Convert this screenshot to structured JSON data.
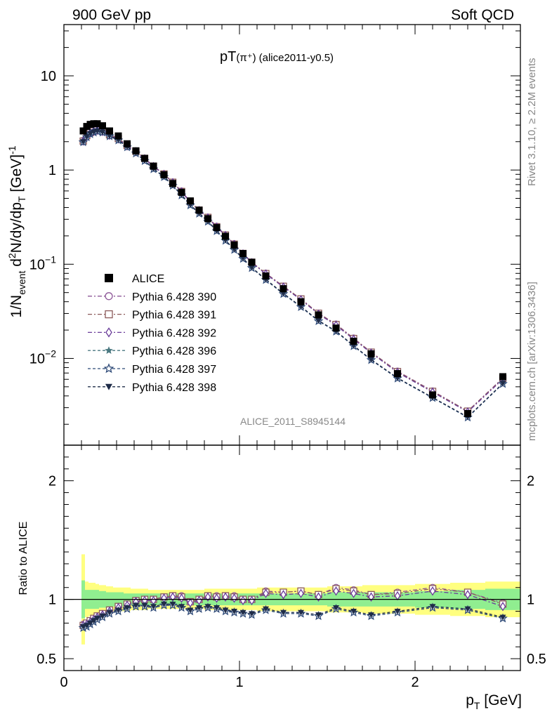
{
  "header": {
    "left": "900 GeV pp",
    "right": "Soft QCD"
  },
  "side_labels": {
    "rivet": "Rivet 3.1.10, ≥ 2.2M events",
    "mcplots": "mcplots.cern.ch [arXiv:1306.3436]"
  },
  "chart_data": {
    "type": "scatter",
    "title_main": "pT",
    "title_particle": "(π⁺)",
    "title_tag": "(alice2011-y0.5)",
    "watermark": "ALICE_2011_S8945144",
    "ylabel": "1/N_event d²N/dy/dp_T [GeV]⁻¹",
    "ylabel_parts": {
      "a": "1/N",
      "a_sub": "event",
      "b": " d",
      "b_sup": "2",
      "c": "N/dy/dp",
      "c_sub": "T",
      "d": " [GeV]",
      "d_sup": "-1"
    },
    "xlabel_parts": {
      "a": "p",
      "a_sub": "T",
      "b": " [GeV]"
    },
    "ratio_ylabel": "Ratio to ALICE",
    "yscale": "log",
    "xlim": [
      0,
      2.6
    ],
    "ylim": [
      0.0012,
      35
    ],
    "ratio_ylim": [
      0.4,
      2.3
    ],
    "x_ticks": [
      {
        "v": 0,
        "label": "0"
      },
      {
        "v": 1,
        "label": "1"
      },
      {
        "v": 2,
        "label": "2"
      }
    ],
    "y_ticks": [
      {
        "v": 10,
        "m": "10",
        "e": ""
      },
      {
        "v": 1,
        "m": "1",
        "e": ""
      },
      {
        "v": 0.1,
        "m": "10",
        "e": "−1"
      },
      {
        "v": 0.01,
        "m": "10",
        "e": "−2"
      }
    ],
    "ratio_ticks": [
      {
        "v": 0.5,
        "label": "0.5"
      },
      {
        "v": 1,
        "label": "1"
      },
      {
        "v": 2,
        "label": "2"
      }
    ],
    "legend_position": "left, middle of upper panel",
    "x": [
      0.11,
      0.13,
      0.15,
      0.17,
      0.19,
      0.22,
      0.26,
      0.31,
      0.36,
      0.41,
      0.46,
      0.51,
      0.57,
      0.62,
      0.67,
      0.72,
      0.77,
      0.82,
      0.87,
      0.92,
      0.97,
      1.02,
      1.07,
      1.15,
      1.25,
      1.35,
      1.45,
      1.55,
      1.65,
      1.75,
      1.9,
      2.1,
      2.3,
      2.5
    ],
    "x_bins": [
      [
        0.1,
        0.12
      ],
      [
        0.12,
        0.14
      ],
      [
        0.14,
        0.16
      ],
      [
        0.16,
        0.18
      ],
      [
        0.18,
        0.2
      ],
      [
        0.2,
        0.24
      ],
      [
        0.24,
        0.28
      ],
      [
        0.28,
        0.34
      ],
      [
        0.34,
        0.38
      ],
      [
        0.38,
        0.44
      ],
      [
        0.44,
        0.48
      ],
      [
        0.48,
        0.54
      ],
      [
        0.54,
        0.6
      ],
      [
        0.6,
        0.64
      ],
      [
        0.64,
        0.7
      ],
      [
        0.7,
        0.74
      ],
      [
        0.74,
        0.8
      ],
      [
        0.8,
        0.84
      ],
      [
        0.84,
        0.9
      ],
      [
        0.9,
        0.94
      ],
      [
        0.94,
        1.0
      ],
      [
        1.0,
        1.04
      ],
      [
        1.04,
        1.1
      ],
      [
        1.1,
        1.2
      ],
      [
        1.2,
        1.3
      ],
      [
        1.3,
        1.4
      ],
      [
        1.4,
        1.5
      ],
      [
        1.5,
        1.6
      ],
      [
        1.6,
        1.7
      ],
      [
        1.7,
        1.8
      ],
      [
        1.8,
        2.0
      ],
      [
        2.0,
        2.2
      ],
      [
        2.2,
        2.4
      ],
      [
        2.4,
        2.6
      ]
    ],
    "data": {
      "name": "ALICE",
      "values": [
        2.6,
        2.9,
        3.05,
        3.1,
        3.1,
        2.95,
        2.6,
        2.3,
        1.9,
        1.6,
        1.33,
        1.1,
        0.89,
        0.72,
        0.58,
        0.47,
        0.375,
        0.305,
        0.245,
        0.198,
        0.16,
        0.13,
        0.105,
        0.075,
        0.055,
        0.04,
        0.029,
        0.021,
        0.0152,
        0.0112,
        0.0069,
        0.0041,
        0.0026,
        0.0064
      ],
      "band_inner": [
        0.16,
        0.08,
        0.08,
        0.08,
        0.08,
        0.07,
        0.06,
        0.06,
        0.05,
        0.05,
        0.05,
        0.05,
        0.05,
        0.05,
        0.05,
        0.05,
        0.05,
        0.05,
        0.05,
        0.05,
        0.05,
        0.05,
        0.05,
        0.05,
        0.05,
        0.05,
        0.05,
        0.06,
        0.06,
        0.06,
        0.06,
        0.07,
        0.08,
        0.09
      ],
      "band_outer": [
        0.38,
        0.15,
        0.14,
        0.14,
        0.13,
        0.12,
        0.11,
        0.1,
        0.1,
        0.09,
        0.09,
        0.08,
        0.08,
        0.08,
        0.08,
        0.08,
        0.08,
        0.09,
        0.09,
        0.09,
        0.09,
        0.09,
        0.09,
        0.1,
        0.1,
        0.1,
        0.1,
        0.11,
        0.11,
        0.12,
        0.12,
        0.13,
        0.14,
        0.15
      ]
    },
    "series": [
      {
        "name": "Pythia 6.428 390",
        "color": "#8e5898",
        "marker": "circle-open",
        "dash": "6,3,2,3",
        "ratio": [
          0.79,
          0.8,
          0.82,
          0.84,
          0.86,
          0.88,
          0.91,
          0.94,
          0.96,
          0.99,
          1.0,
          1.0,
          1.02,
          1.03,
          1.03,
          0.98,
          1.0,
          1.03,
          1.03,
          1.03,
          1.03,
          1.0,
          1.0,
          1.07,
          1.06,
          1.07,
          1.04,
          1.1,
          1.08,
          1.04,
          1.06,
          1.1,
          1.06,
          0.97
        ]
      },
      {
        "name": "Pythia 6.428 391",
        "color": "#8c5a5a",
        "marker": "square-open",
        "dash": "6,3,2,3",
        "ratio": [
          0.78,
          0.8,
          0.82,
          0.84,
          0.86,
          0.88,
          0.91,
          0.94,
          0.96,
          0.99,
          1.0,
          1.0,
          1.02,
          1.03,
          1.02,
          0.98,
          1.0,
          1.03,
          1.02,
          1.03,
          1.02,
          1.0,
          1.0,
          1.06,
          1.06,
          1.07,
          1.04,
          1.09,
          1.07,
          1.04,
          1.05,
          1.09,
          1.06,
          0.96
        ]
      },
      {
        "name": "Pythia 6.428 392",
        "color": "#6a3d9a",
        "marker": "diamond-open",
        "dash": "6,3,2,3",
        "ratio": [
          0.78,
          0.79,
          0.81,
          0.83,
          0.85,
          0.87,
          0.9,
          0.93,
          0.95,
          0.98,
          0.99,
          0.99,
          1.01,
          1.02,
          1.01,
          0.97,
          0.99,
          1.02,
          1.01,
          1.02,
          1.01,
          0.99,
          0.99,
          1.05,
          1.04,
          1.05,
          1.02,
          1.07,
          1.05,
          1.02,
          1.03,
          1.07,
          1.04,
          0.94
        ]
      },
      {
        "name": "Pythia 6.428 396",
        "color": "#4a7880",
        "marker": "star-filled",
        "dash": "4,3",
        "ratio": [
          0.76,
          0.77,
          0.79,
          0.81,
          0.83,
          0.85,
          0.88,
          0.9,
          0.92,
          0.94,
          0.94,
          0.93,
          0.95,
          0.95,
          0.93,
          0.9,
          0.92,
          0.93,
          0.92,
          0.9,
          0.89,
          0.88,
          0.87,
          0.91,
          0.88,
          0.88,
          0.86,
          0.92,
          0.89,
          0.86,
          0.89,
          0.93,
          0.91,
          0.84
        ]
      },
      {
        "name": "Pythia 6.428 397",
        "color": "#2e4a78",
        "marker": "star-open",
        "dash": "4,3",
        "ratio": [
          0.76,
          0.77,
          0.79,
          0.81,
          0.83,
          0.85,
          0.88,
          0.9,
          0.92,
          0.94,
          0.94,
          0.93,
          0.95,
          0.95,
          0.93,
          0.9,
          0.92,
          0.93,
          0.92,
          0.9,
          0.89,
          0.88,
          0.87,
          0.91,
          0.88,
          0.88,
          0.86,
          0.92,
          0.89,
          0.86,
          0.89,
          0.93,
          0.91,
          0.84
        ]
      },
      {
        "name": "Pythia 6.428 398",
        "color": "#1f2c48",
        "marker": "triangle-down-filled",
        "dash": "4,3",
        "ratio": [
          0.77,
          0.78,
          0.8,
          0.82,
          0.84,
          0.86,
          0.89,
          0.91,
          0.93,
          0.95,
          0.95,
          0.94,
          0.96,
          0.96,
          0.94,
          0.91,
          0.93,
          0.94,
          0.93,
          0.91,
          0.9,
          0.89,
          0.88,
          0.92,
          0.89,
          0.89,
          0.87,
          0.93,
          0.9,
          0.87,
          0.9,
          0.94,
          0.92,
          0.85
        ]
      }
    ],
    "colors": {
      "data": "#000000",
      "band_outer": "#ffff80",
      "band_inner": "#90ee90"
    }
  }
}
